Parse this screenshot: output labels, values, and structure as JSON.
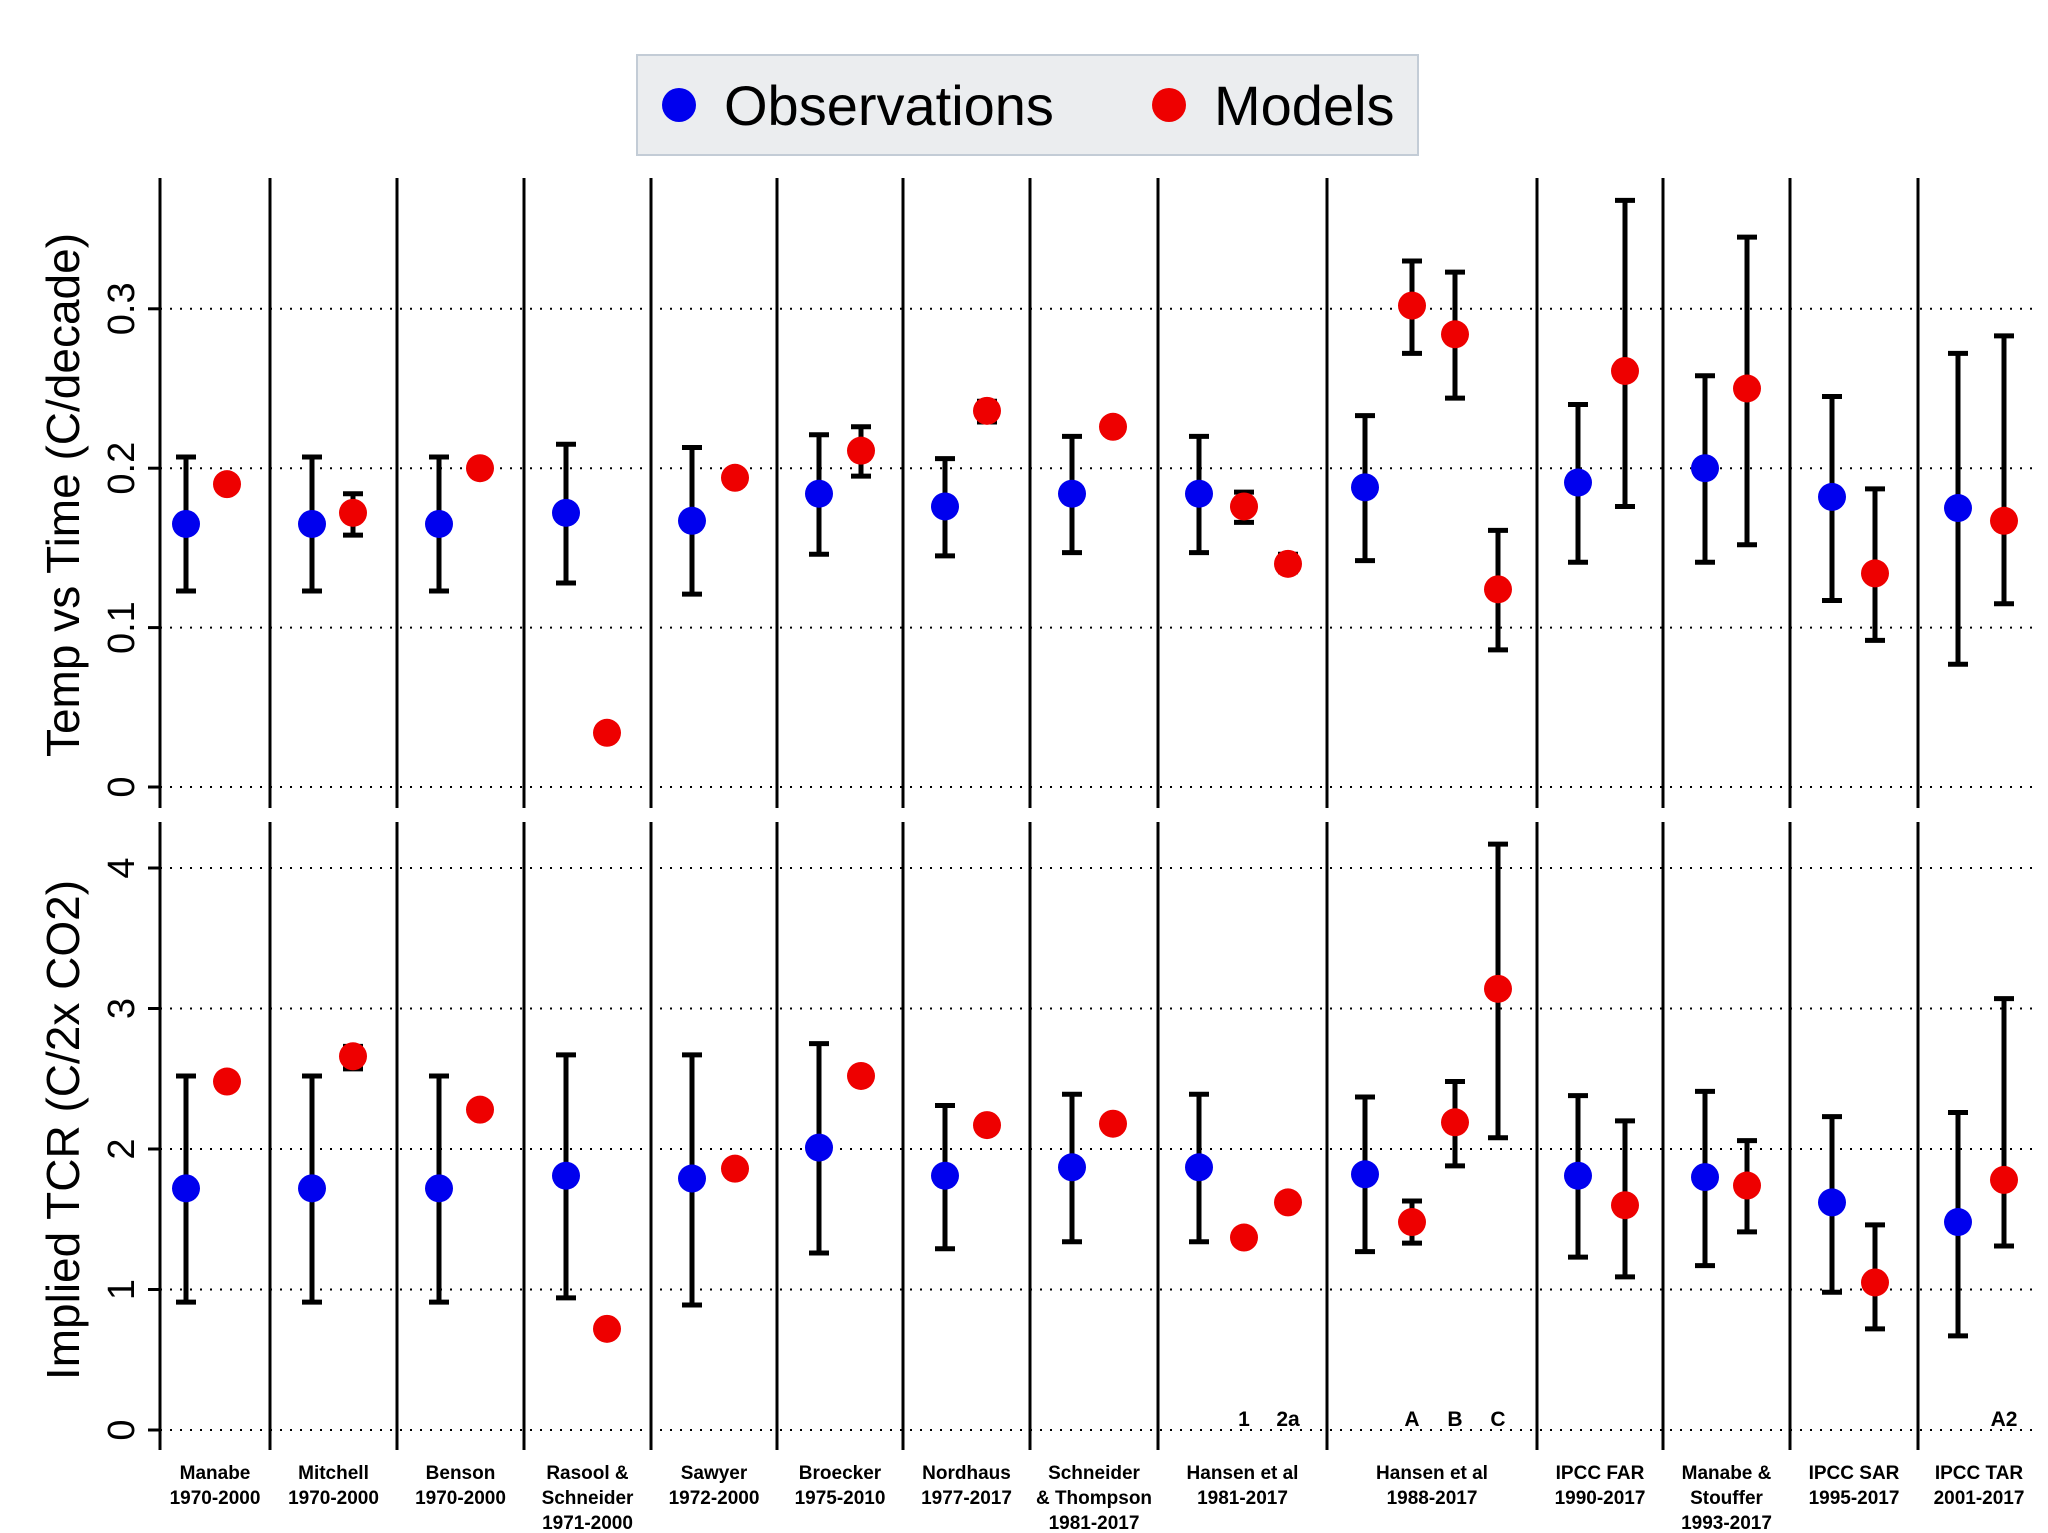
{
  "legend": {
    "observations_label": "Observations",
    "models_label": "Models"
  },
  "colors": {
    "observations": "#0000ee",
    "models": "#ee0000",
    "bars": "#000000"
  },
  "chart_data": [
    {
      "type": "scatter",
      "panel": "top",
      "ylabel": "Temp vs Time (C/decade)",
      "ylim": [
        0,
        0.37
      ],
      "yticks": [
        "0",
        "0.1",
        "0.2",
        "0.3"
      ],
      "grid": "dotted horizontal",
      "series": [
        {
          "name": "Observations",
          "points": [
            {
              "group": 0,
              "y": 0.165,
              "lo": 0.123,
              "hi": 0.207
            },
            {
              "group": 1,
              "y": 0.165,
              "lo": 0.123,
              "hi": 0.207
            },
            {
              "group": 2,
              "y": 0.165,
              "lo": 0.123,
              "hi": 0.207
            },
            {
              "group": 3,
              "y": 0.172,
              "lo": 0.128,
              "hi": 0.215
            },
            {
              "group": 4,
              "y": 0.167,
              "lo": 0.121,
              "hi": 0.213
            },
            {
              "group": 5,
              "y": 0.184,
              "lo": 0.146,
              "hi": 0.221
            },
            {
              "group": 6,
              "y": 0.176,
              "lo": 0.145,
              "hi": 0.206
            },
            {
              "group": 7,
              "y": 0.184,
              "lo": 0.147,
              "hi": 0.22
            },
            {
              "group": 8,
              "y": 0.184,
              "lo": 0.147,
              "hi": 0.22
            },
            {
              "group": 9,
              "y": 0.188,
              "lo": 0.142,
              "hi": 0.233
            },
            {
              "group": 10,
              "y": 0.191,
              "lo": 0.141,
              "hi": 0.24
            },
            {
              "group": 11,
              "y": 0.2,
              "lo": 0.141,
              "hi": 0.258
            },
            {
              "group": 12,
              "y": 0.182,
              "lo": 0.117,
              "hi": 0.245
            },
            {
              "group": 13,
              "y": 0.175,
              "lo": 0.077,
              "hi": 0.272
            }
          ]
        },
        {
          "name": "Models",
          "points": [
            {
              "group": 0,
              "y": 0.19
            },
            {
              "group": 1,
              "y": 0.172,
              "lo": 0.158,
              "hi": 0.184
            },
            {
              "group": 2,
              "y": 0.2
            },
            {
              "group": 3,
              "y": 0.034
            },
            {
              "group": 4,
              "y": 0.194
            },
            {
              "group": 5,
              "y": 0.211,
              "lo": 0.195,
              "hi": 0.226
            },
            {
              "group": 6,
              "y": 0.236,
              "lo": 0.229,
              "hi": 0.242
            },
            {
              "group": 7,
              "y": 0.226,
              "lo": 0.222,
              "hi": 0.229
            },
            {
              "group": 8,
              "y": 0.176,
              "lo": 0.166,
              "hi": 0.185,
              "slot": 1
            },
            {
              "group": 8,
              "y": 0.14,
              "lo": 0.135,
              "hi": 0.146,
              "slot": 2
            },
            {
              "group": 9,
              "y": 0.302,
              "lo": 0.272,
              "hi": 0.33,
              "slot": 1
            },
            {
              "group": 9,
              "y": 0.284,
              "lo": 0.244,
              "hi": 0.323,
              "slot": 2
            },
            {
              "group": 9,
              "y": 0.124,
              "lo": 0.086,
              "hi": 0.161,
              "slot": 3
            },
            {
              "group": 10,
              "y": 0.261,
              "lo": 0.176,
              "hi": 0.368
            },
            {
              "group": 11,
              "y": 0.25,
              "lo": 0.152,
              "hi": 0.345
            },
            {
              "group": 12,
              "y": 0.134,
              "lo": 0.092,
              "hi": 0.187
            },
            {
              "group": 13,
              "y": 0.167,
              "lo": 0.115,
              "hi": 0.283
            }
          ]
        }
      ]
    },
    {
      "type": "scatter",
      "panel": "bottom",
      "ylabel": "Implied TCR (C/2x CO2)",
      "ylim": [
        0,
        4.5
      ],
      "yticks": [
        "0",
        "1",
        "2",
        "3",
        "4"
      ],
      "grid": "dotted horizontal",
      "series": [
        {
          "name": "Observations",
          "points": [
            {
              "group": 0,
              "y": 1.72,
              "lo": 0.91,
              "hi": 2.52
            },
            {
              "group": 1,
              "y": 1.72,
              "lo": 0.91,
              "hi": 2.52
            },
            {
              "group": 2,
              "y": 1.72,
              "lo": 0.91,
              "hi": 2.52
            },
            {
              "group": 3,
              "y": 1.81,
              "lo": 0.94,
              "hi": 2.67
            },
            {
              "group": 4,
              "y": 1.79,
              "lo": 0.89,
              "hi": 2.67
            },
            {
              "group": 5,
              "y": 2.01,
              "lo": 1.26,
              "hi": 2.75
            },
            {
              "group": 6,
              "y": 1.81,
              "lo": 1.29,
              "hi": 2.31
            },
            {
              "group": 7,
              "y": 1.87,
              "lo": 1.34,
              "hi": 2.39
            },
            {
              "group": 8,
              "y": 1.87,
              "lo": 1.34,
              "hi": 2.39
            },
            {
              "group": 9,
              "y": 1.82,
              "lo": 1.27,
              "hi": 2.37
            },
            {
              "group": 10,
              "y": 1.81,
              "lo": 1.23,
              "hi": 2.38
            },
            {
              "group": 11,
              "y": 1.8,
              "lo": 1.17,
              "hi": 2.41
            },
            {
              "group": 12,
              "y": 1.62,
              "lo": 0.98,
              "hi": 2.23
            },
            {
              "group": 13,
              "y": 1.48,
              "lo": 0.67,
              "hi": 2.26
            }
          ]
        },
        {
          "name": "Models",
          "points": [
            {
              "group": 0,
              "y": 2.48
            },
            {
              "group": 1,
              "y": 2.66,
              "lo": 2.57,
              "hi": 2.73
            },
            {
              "group": 2,
              "y": 2.28
            },
            {
              "group": 3,
              "y": 0.72
            },
            {
              "group": 4,
              "y": 1.86
            },
            {
              "group": 5,
              "y": 2.52
            },
            {
              "group": 6,
              "y": 2.17
            },
            {
              "group": 7,
              "y": 2.18
            },
            {
              "group": 8,
              "y": 1.37,
              "slot": 1
            },
            {
              "group": 8,
              "y": 1.62,
              "slot": 2
            },
            {
              "group": 9,
              "y": 1.48,
              "lo": 1.33,
              "hi": 1.63,
              "slot": 1
            },
            {
              "group": 9,
              "y": 2.19,
              "lo": 1.88,
              "hi": 2.48,
              "slot": 2
            },
            {
              "group": 9,
              "y": 3.14,
              "lo": 2.08,
              "hi": 4.17,
              "slot": 3
            },
            {
              "group": 10,
              "y": 1.6,
              "lo": 1.09,
              "hi": 2.2
            },
            {
              "group": 11,
              "y": 1.74,
              "lo": 1.41,
              "hi": 2.06
            },
            {
              "group": 12,
              "y": 1.05,
              "lo": 0.72,
              "hi": 1.46
            },
            {
              "group": 13,
              "y": 1.78,
              "lo": 1.31,
              "hi": 3.07
            }
          ]
        }
      ]
    }
  ],
  "groups": [
    {
      "label": [
        "Manabe",
        "1970-2000"
      ]
    },
    {
      "label": [
        "Mitchell",
        "1970-2000"
      ]
    },
    {
      "label": [
        "Benson",
        "1970-2000"
      ]
    },
    {
      "label": [
        "Rasool &",
        "Schneider",
        "1971-2000"
      ]
    },
    {
      "label": [
        "Sawyer",
        "1972-2000"
      ]
    },
    {
      "label": [
        "Broecker",
        "1975-2010"
      ]
    },
    {
      "label": [
        "Nordhaus",
        "1977-2017"
      ]
    },
    {
      "label": [
        "Schneider",
        "& Thompson",
        "1981-2017"
      ]
    },
    {
      "label": [
        "Hansen et al",
        "1981-2017"
      ],
      "scenarios": [
        "1",
        "2a"
      ]
    },
    {
      "label": [
        "Hansen et al",
        "1988-2017"
      ],
      "scenarios": [
        "A",
        "B",
        "C"
      ]
    },
    {
      "label": [
        "IPCC FAR",
        "1990-2017"
      ]
    },
    {
      "label": [
        "Manabe &",
        "Stouffer",
        "1993-2017"
      ]
    },
    {
      "label": [
        "IPCC SAR",
        "1995-2017"
      ]
    },
    {
      "label": [
        "IPCC TAR",
        "2001-2017"
      ],
      "scenarios": [
        "A2"
      ]
    }
  ]
}
